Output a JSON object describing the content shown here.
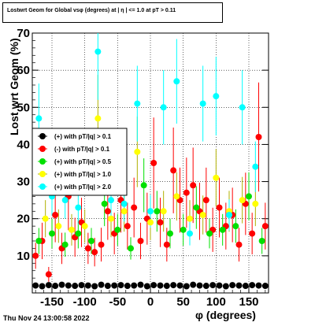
{
  "header": {
    "title": "Lostwrt Geom for Global vsφ (degrees) at | η | <= 1.0 at pT > 0.11"
  },
  "footer": {
    "timestamp": "Thu Nov 24 13:00:58 2022"
  },
  "colors": {
    "black": "#000000",
    "red": "#ff0000",
    "green": "#00e000",
    "yellow": "#ffff00",
    "cyan": "#00ffff"
  },
  "chart_data": {
    "type": "scatter",
    "title": "Lostwrt Geom for Global vsφ (degrees) at | η | <= 1.0 at pT > 0.11",
    "xlabel": "φ (degrees)",
    "ylabel": "Lost wrt Geom (%)",
    "xlim": [
      -180,
      180
    ],
    "ylim": [
      0,
      70
    ],
    "xticks": [
      -150,
      -100,
      -50,
      0,
      50,
      100,
      150
    ],
    "yticks": [
      0,
      10,
      20,
      30,
      40,
      50,
      60,
      70
    ],
    "grid": true,
    "legend_position": "left-middle",
    "series": [
      {
        "name": "(+) with pT/|q| > 0.1",
        "color": "#000000",
        "x": [
          -175,
          -165,
          -155,
          -145,
          -135,
          -125,
          -115,
          -105,
          -95,
          -85,
          -75,
          -65,
          -55,
          -45,
          -35,
          -25,
          -15,
          -5,
          5,
          15,
          25,
          35,
          45,
          55,
          65,
          75,
          85,
          95,
          105,
          115,
          125,
          135,
          145,
          155,
          165,
          175
        ],
        "y": [
          2.0,
          1.8,
          2.1,
          1.9,
          2.2,
          2.0,
          1.9,
          2.1,
          2.0,
          1.8,
          2.2,
          1.9,
          2.0,
          2.1,
          1.9,
          2.0,
          2.2,
          1.8,
          2.1,
          2.0,
          1.9,
          2.1,
          2.0,
          1.8,
          2.2,
          2.0,
          1.9,
          2.1,
          2.0,
          1.8,
          2.1,
          2.0,
          1.9,
          2.1,
          2.0,
          1.9
        ]
      },
      {
        "name": "(-) with pT/|q| > 0.1",
        "color": "#ff0000",
        "x": [
          -175,
          -165,
          -155,
          -145,
          -135,
          -125,
          -115,
          -105,
          -95,
          -85,
          -75,
          -65,
          -55,
          -45,
          -35,
          -25,
          -15,
          -5,
          5,
          15,
          25,
          35,
          45,
          55,
          65,
          75,
          85,
          95,
          105,
          115,
          125,
          135,
          145,
          155,
          165,
          175
        ],
        "y": [
          10,
          14,
          5,
          21,
          12,
          26,
          15,
          19,
          12,
          11,
          13,
          22,
          16,
          25,
          18,
          23,
          14,
          20,
          35,
          19,
          13,
          33,
          25,
          27,
          29,
          22,
          25,
          17,
          23,
          18,
          21,
          13,
          24,
          16,
          42,
          18
        ]
      },
      {
        "name": "(+) with pT/|q| > 0.5",
        "color": "#00e000",
        "x": [
          -170,
          -150,
          -130,
          -110,
          -90,
          -70,
          -50,
          -30,
          -10,
          10,
          30,
          50,
          70,
          90,
          110,
          130,
          150,
          170
        ],
        "y": [
          14,
          16,
          13,
          16,
          14,
          24,
          17,
          12,
          29,
          22,
          16,
          17,
          23,
          16,
          17,
          18,
          26,
          14
        ]
      },
      {
        "name": "(+) with pT/|q| > 1.0",
        "color": "#ffff00",
        "x": [
          -160,
          -140,
          -120,
          -100,
          -80,
          -60,
          -40,
          -20,
          0,
          20,
          40,
          60,
          80,
          100,
          120,
          140,
          160
        ],
        "y": [
          20,
          18,
          17,
          18,
          47,
          20,
          22,
          38,
          19,
          22,
          26,
          20,
          21,
          31,
          22,
          25,
          24
        ]
      },
      {
        "name": "(+) with pT/|q| > 2.0",
        "color": "#00ffff",
        "x": [
          -170,
          -150,
          -130,
          -110,
          -80,
          -60,
          -40,
          -20,
          0,
          20,
          40,
          60,
          80,
          100,
          120,
          140,
          160
        ],
        "y": [
          47,
          26,
          25,
          23,
          65,
          25,
          24,
          51,
          22,
          50,
          57,
          16,
          51,
          53,
          21,
          50,
          34
        ]
      }
    ]
  }
}
